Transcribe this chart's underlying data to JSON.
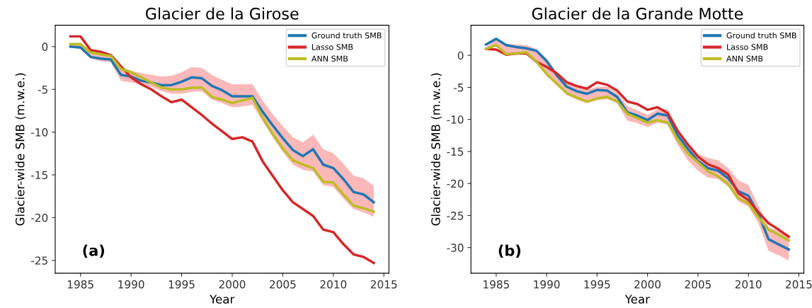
{
  "chart_data": [
    {
      "type": "line",
      "title": "Glacier de la Girose",
      "xlabel": "Year",
      "ylabel": "Glacier-wide SMB (m.w.e.)",
      "annotations": [
        "(a)"
      ],
      "x": [
        1984,
        1985,
        1986,
        1987,
        1988,
        1989,
        1990,
        1991,
        1992,
        1993,
        1994,
        1995,
        1996,
        1997,
        1998,
        1999,
        2000,
        2001,
        2002,
        2003,
        2004,
        2005,
        2006,
        2007,
        2008,
        2009,
        2010,
        2011,
        2012,
        2013,
        2014
      ],
      "series": [
        {
          "name": "Ground truth SMB",
          "color": "#1f77b4",
          "values": [
            0.0,
            -0.1,
            -1.2,
            -1.4,
            -1.5,
            -3.3,
            -3.5,
            -4.0,
            -4.2,
            -4.5,
            -4.5,
            -4.1,
            -3.6,
            -3.7,
            -4.6,
            -5.1,
            -5.8,
            -5.8,
            -5.8,
            -7.6,
            -9.2,
            -10.7,
            -12.1,
            -12.8,
            -12.0,
            -13.8,
            -14.2,
            -15.5,
            -17.0,
            -17.3,
            -18.2
          ]
        },
        {
          "name": "Lasso SMB",
          "color": "#d62728",
          "values": [
            1.2,
            1.2,
            -0.4,
            -0.6,
            -1.0,
            -2.3,
            -3.6,
            -4.4,
            -5.0,
            -5.8,
            -6.5,
            -6.2,
            -7.1,
            -8.0,
            -9.0,
            -9.9,
            -10.8,
            -10.6,
            -11.1,
            -13.4,
            -15.1,
            -16.8,
            -18.2,
            -19.0,
            -19.8,
            -21.4,
            -21.7,
            -23.1,
            -24.3,
            -24.6,
            -25.3
          ]
        },
        {
          "name": "ANN SMB",
          "color": "#bcbd22",
          "values": [
            0.3,
            0.3,
            -0.7,
            -0.9,
            -1.1,
            -2.6,
            -3.0,
            -3.6,
            -4.2,
            -4.8,
            -5.0,
            -5.0,
            -4.8,
            -4.8,
            -5.9,
            -6.2,
            -6.6,
            -6.3,
            -6.0,
            -8.3,
            -10.2,
            -11.9,
            -13.3,
            -13.8,
            -14.2,
            -15.8,
            -15.9,
            -17.3,
            -18.6,
            -18.9,
            -19.3
          ],
          "upper": [
            0.3,
            0.3,
            -0.5,
            -0.6,
            -1.0,
            -2.3,
            -2.8,
            -3.1,
            -3.3,
            -3.5,
            -3.4,
            -3.0,
            -2.4,
            -2.5,
            -3.3,
            -3.9,
            -4.4,
            -4.4,
            -4.4,
            -6.3,
            -7.9,
            -9.3,
            -10.6,
            -11.2,
            -10.3,
            -12.0,
            -12.5,
            -13.7,
            -15.1,
            -15.4,
            -16.3
          ],
          "lower": [
            -0.1,
            -0.3,
            -1.4,
            -1.7,
            -1.8,
            -4.0,
            -4.2,
            -4.4,
            -4.7,
            -5.2,
            -5.5,
            -5.5,
            -5.3,
            -5.2,
            -6.2,
            -6.6,
            -7.1,
            -7.0,
            -6.8,
            -8.7,
            -10.6,
            -12.3,
            -13.8,
            -14.4,
            -14.6,
            -16.2,
            -16.4,
            -17.8,
            -19.0,
            -19.4,
            -19.9
          ]
        }
      ],
      "xlim": [
        1982.5,
        2015.5
      ],
      "xticks": [
        1985,
        1990,
        1995,
        2000,
        2005,
        2010,
        2015
      ],
      "ylim": [
        -26.5,
        2.5
      ],
      "yticks": [
        -25,
        -20,
        -15,
        -10,
        -5,
        0
      ],
      "grid": false,
      "legend": "top right",
      "marker": "none",
      "line_style": "solid"
    },
    {
      "type": "line",
      "title": "Glacier de la Grande Motte",
      "xlabel": "Year",
      "ylabel": "Glacier-wide SMB (m.w.e.)",
      "annotations": [
        "(b)"
      ],
      "x": [
        1984,
        1985,
        1986,
        1987,
        1988,
        1989,
        1990,
        1991,
        1992,
        1993,
        1994,
        1995,
        1996,
        1997,
        1998,
        1999,
        2000,
        2001,
        2002,
        2003,
        2004,
        2005,
        2006,
        2007,
        2008,
        2009,
        2010,
        2011,
        2012,
        2013,
        2014
      ],
      "series": [
        {
          "name": "Ground truth SMB",
          "color": "#1f77b4",
          "values": [
            1.7,
            2.6,
            1.6,
            1.3,
            1.1,
            0.7,
            -0.9,
            -3.1,
            -4.9,
            -5.6,
            -6.0,
            -5.4,
            -5.5,
            -6.5,
            -8.9,
            -9.4,
            -10.1,
            -9.1,
            -9.4,
            -12.5,
            -14.6,
            -16.5,
            -17.6,
            -18.0,
            -19.2,
            -21.2,
            -21.9,
            -24.8,
            -28.7,
            -29.5,
            -30.3
          ]
        },
        {
          "name": "Lasso SMB",
          "color": "#d62728",
          "values": [
            1.0,
            0.9,
            0.1,
            0.3,
            0.3,
            -1.0,
            -1.8,
            -2.8,
            -4.2,
            -4.8,
            -5.2,
            -4.2,
            -4.6,
            -5.5,
            -7.2,
            -7.6,
            -8.5,
            -8.1,
            -9.0,
            -11.8,
            -13.9,
            -15.8,
            -17.0,
            -17.6,
            -18.6,
            -21.5,
            -22.6,
            -24.5,
            -26.2,
            -27.2,
            -28.3
          ]
        },
        {
          "name": "ANN SMB",
          "color": "#bcbd22",
          "values": [
            1.0,
            1.6,
            0.2,
            0.3,
            0.5,
            -1.0,
            -2.9,
            -4.4,
            -5.9,
            -6.6,
            -7.2,
            -6.7,
            -6.5,
            -7.2,
            -9.1,
            -9.8,
            -10.5,
            -10.1,
            -10.5,
            -13.2,
            -15.3,
            -16.7,
            -18.1,
            -18.9,
            -20.1,
            -22.3,
            -23.1,
            -25.3,
            -27.2,
            -28.0,
            -28.9
          ],
          "upper": [
            1.2,
            2.6,
            1.8,
            1.7,
            1.6,
            1.0,
            -0.5,
            -2.6,
            -4.3,
            -5.0,
            -5.4,
            -4.9,
            -4.9,
            -5.8,
            -7.9,
            -8.6,
            -9.3,
            -8.4,
            -8.4,
            -11.6,
            -13.7,
            -15.4,
            -16.0,
            -16.4,
            -17.6,
            -19.5,
            -20.2,
            -23.5,
            -26.8,
            -27.4,
            -28.2
          ],
          "lower": [
            0.9,
            1.4,
            0.0,
            0.1,
            0.2,
            -1.3,
            -3.2,
            -4.7,
            -6.2,
            -6.9,
            -7.5,
            -7.0,
            -6.8,
            -7.5,
            -10.2,
            -10.6,
            -11.2,
            -10.5,
            -10.8,
            -14.0,
            -16.4,
            -18.0,
            -19.1,
            -19.3,
            -20.5,
            -22.8,
            -23.6,
            -26.2,
            -30.5,
            -31.2,
            -32.0
          ]
        }
      ],
      "xlim": [
        1982.5,
        2015.5
      ],
      "xticks": [
        1985,
        1990,
        1995,
        2000,
        2005,
        2010,
        2015
      ],
      "ylim": [
        -34,
        4.7
      ],
      "yticks": [
        -30,
        -25,
        -20,
        -15,
        -10,
        -5,
        0
      ],
      "grid": false,
      "legend": "top right",
      "marker": "none",
      "line_style": "solid"
    }
  ]
}
